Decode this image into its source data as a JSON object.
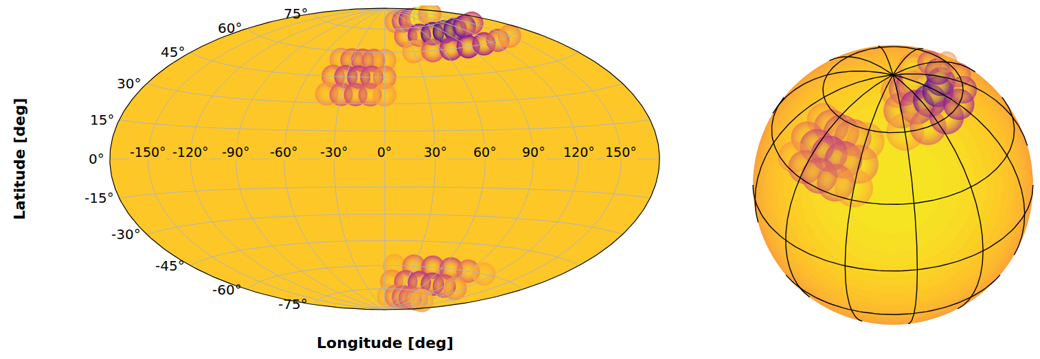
{
  "chart_data": [
    {
      "type": "hammer",
      "xlabel": "Longitude [deg]",
      "ylabel": "Latitude [deg]",
      "xlim": [
        -180,
        180
      ],
      "ylim": [
        -90,
        90
      ],
      "xticks": [
        {
          "value": -150,
          "label": "-150°"
        },
        {
          "value": -120,
          "label": "-120°"
        },
        {
          "value": -90,
          "label": "-90°"
        },
        {
          "value": -60,
          "label": "-60°"
        },
        {
          "value": -30,
          "label": "-30°"
        },
        {
          "value": 0,
          "label": "0°"
        },
        {
          "value": 30,
          "label": "30°"
        },
        {
          "value": 60,
          "label": "60°"
        },
        {
          "value": 90,
          "label": "90°"
        },
        {
          "value": 120,
          "label": "120°"
        },
        {
          "value": 150,
          "label": "150°"
        }
      ],
      "yticks": [
        {
          "value": -75,
          "label": "-75°"
        },
        {
          "value": -60,
          "label": "-60°"
        },
        {
          "value": -45,
          "label": "-45°"
        },
        {
          "value": -30,
          "label": "-30°"
        },
        {
          "value": -15,
          "label": "-15°"
        },
        {
          "value": 0,
          "label": "0°"
        },
        {
          "value": 15,
          "label": "15°"
        },
        {
          "value": 30,
          "label": "30°"
        },
        {
          "value": 45,
          "label": "45°"
        },
        {
          "value": 60,
          "label": "60°"
        },
        {
          "value": 75,
          "label": "75°"
        }
      ],
      "grid": true,
      "zlim": [
        0,
        1
      ],
      "surface_value": 0.88,
      "cells": {
        "lon": [
          -40,
          -30,
          -20,
          -10,
          0,
          -40,
          -30,
          -20,
          -10,
          0,
          -40,
          -30,
          -20,
          -10,
          0,
          30,
          50,
          70,
          90,
          110,
          130,
          150,
          30,
          50,
          70,
          90,
          110,
          130,
          150,
          30,
          50,
          70,
          90,
          110,
          130,
          150,
          10,
          30,
          50,
          70,
          90,
          110,
          10,
          30,
          50,
          70,
          90,
          110,
          10,
          30,
          50,
          70,
          90,
          110
        ],
        "lat": [
          55,
          55,
          55,
          55,
          55,
          45,
          45,
          45,
          45,
          45,
          35,
          35,
          35,
          35,
          35,
          80,
          80,
          80,
          80,
          80,
          80,
          80,
          70,
          70,
          70,
          70,
          70,
          70,
          70,
          60,
          60,
          60,
          60,
          60,
          60,
          60,
          -60,
          -60,
          -60,
          -60,
          -60,
          -60,
          -70,
          -70,
          -70,
          -70,
          -70,
          -70,
          -80,
          -80,
          -80,
          -80,
          -80,
          -80
        ],
        "values": [
          0.72,
          0.58,
          0.52,
          0.58,
          0.75,
          0.62,
          0.47,
          0.42,
          0.47,
          0.66,
          0.74,
          0.57,
          0.52,
          0.57,
          0.77,
          0.72,
          0.5,
          0.35,
          0.6,
          0.98,
          0.95,
          0.72,
          0.58,
          0.32,
          0.16,
          0.1,
          0.12,
          0.22,
          0.48,
          0.76,
          0.56,
          0.36,
          0.3,
          0.36,
          0.52,
          0.72,
          0.8,
          0.62,
          0.5,
          0.5,
          0.62,
          0.8,
          0.72,
          0.5,
          0.42,
          0.42,
          0.5,
          0.72,
          0.8,
          0.65,
          0.55,
          0.55,
          0.65,
          0.8
        ]
      }
    },
    {
      "type": "orthographic",
      "xlim": [
        -180,
        180
      ],
      "ylim": [
        -90,
        90
      ],
      "xticks": [
        -180,
        -150,
        -120,
        -90,
        -60,
        -30,
        0,
        30,
        60,
        90,
        120,
        150
      ],
      "yticks": [
        -60,
        -30,
        0,
        30,
        60
      ],
      "grid": true,
      "tick_labels": false,
      "zlim": [
        0,
        1
      ],
      "surface_value": 0.88,
      "cells": {
        "lon": [
          -40,
          -30,
          -20,
          -10,
          0,
          -40,
          -30,
          -20,
          -10,
          0,
          -40,
          -30,
          -20,
          -10,
          0,
          30,
          50,
          70,
          90,
          110,
          130,
          150,
          30,
          50,
          70,
          90,
          110,
          130,
          150,
          30,
          50,
          70,
          90,
          110,
          130,
          150,
          10,
          30,
          50,
          70,
          90,
          110,
          10,
          30,
          50,
          70,
          90,
          110,
          10,
          30,
          50,
          70,
          90,
          110
        ],
        "lat": [
          55,
          55,
          55,
          55,
          55,
          45,
          45,
          45,
          45,
          45,
          35,
          35,
          35,
          35,
          35,
          80,
          80,
          80,
          80,
          80,
          80,
          80,
          70,
          70,
          70,
          70,
          70,
          70,
          70,
          60,
          60,
          60,
          60,
          60,
          60,
          60,
          -60,
          -60,
          -60,
          -60,
          -60,
          -60,
          -70,
          -70,
          -70,
          -70,
          -70,
          -70,
          -80,
          -80,
          -80,
          -80,
          -80,
          -80
        ],
        "values": [
          0.72,
          0.58,
          0.52,
          0.58,
          0.75,
          0.62,
          0.47,
          0.42,
          0.47,
          0.66,
          0.74,
          0.57,
          0.52,
          0.57,
          0.77,
          0.72,
          0.5,
          0.35,
          0.6,
          0.98,
          0.95,
          0.72,
          0.58,
          0.32,
          0.16,
          0.1,
          0.12,
          0.22,
          0.48,
          0.76,
          0.56,
          0.36,
          0.3,
          0.36,
          0.52,
          0.72,
          0.8,
          0.62,
          0.5,
          0.5,
          0.62,
          0.8,
          0.72,
          0.5,
          0.42,
          0.42,
          0.5,
          0.72,
          0.8,
          0.65,
          0.55,
          0.55,
          0.65,
          0.8
        ]
      }
    }
  ]
}
